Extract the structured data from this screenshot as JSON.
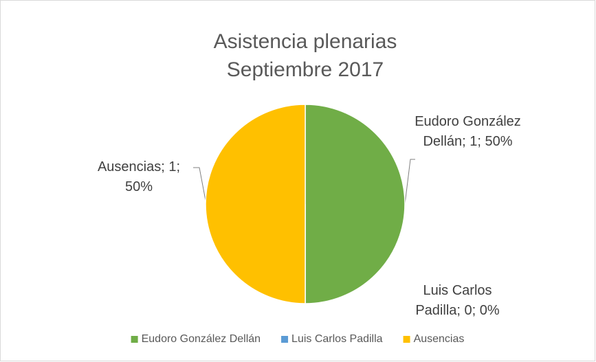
{
  "chart_data": {
    "type": "pie",
    "title": [
      "Asistencia plenarias",
      "Septiembre 2017"
    ],
    "categories": [
      "Eudoro González Dellán",
      "Luis Carlos Padilla",
      "Ausencias"
    ],
    "values": [
      1,
      0,
      1
    ],
    "value_labels": [
      "Eudoro González Dellán; 1; 50%",
      "Luis Carlos Padilla; 0; 0%",
      "Ausencias; 1; 50%"
    ],
    "colors": [
      "#70ad47",
      "#5b9bd5",
      "#ffc000"
    ],
    "legend": "bottom"
  }
}
